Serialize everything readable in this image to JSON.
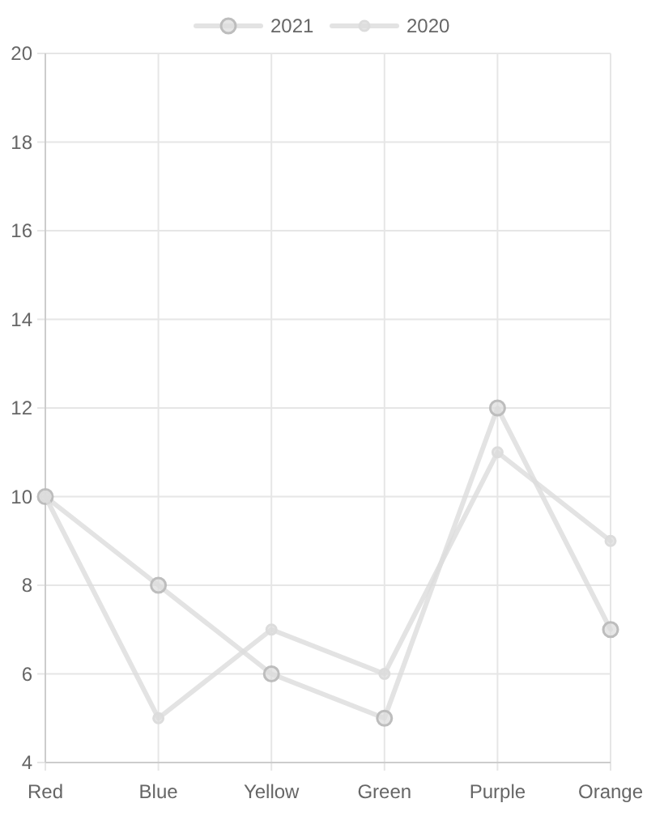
{
  "chart_data": {
    "type": "line",
    "categories": [
      "Red",
      "Blue",
      "Yellow",
      "Green",
      "Purple",
      "Orange"
    ],
    "series": [
      {
        "name": "2021",
        "color": "#dcdcdc",
        "values": [
          10,
          8,
          6,
          5,
          12,
          7
        ]
      },
      {
        "name": "2020",
        "color": "#dcdcdc",
        "values": [
          10,
          5,
          7,
          6,
          11,
          9
        ]
      }
    ],
    "ylim": [
      4,
      20
    ],
    "yticks": [
      4,
      6,
      8,
      10,
      12,
      14,
      16,
      18,
      20
    ],
    "grid": true,
    "legend": "top",
    "marker": "circle",
    "line_style": "solid"
  }
}
